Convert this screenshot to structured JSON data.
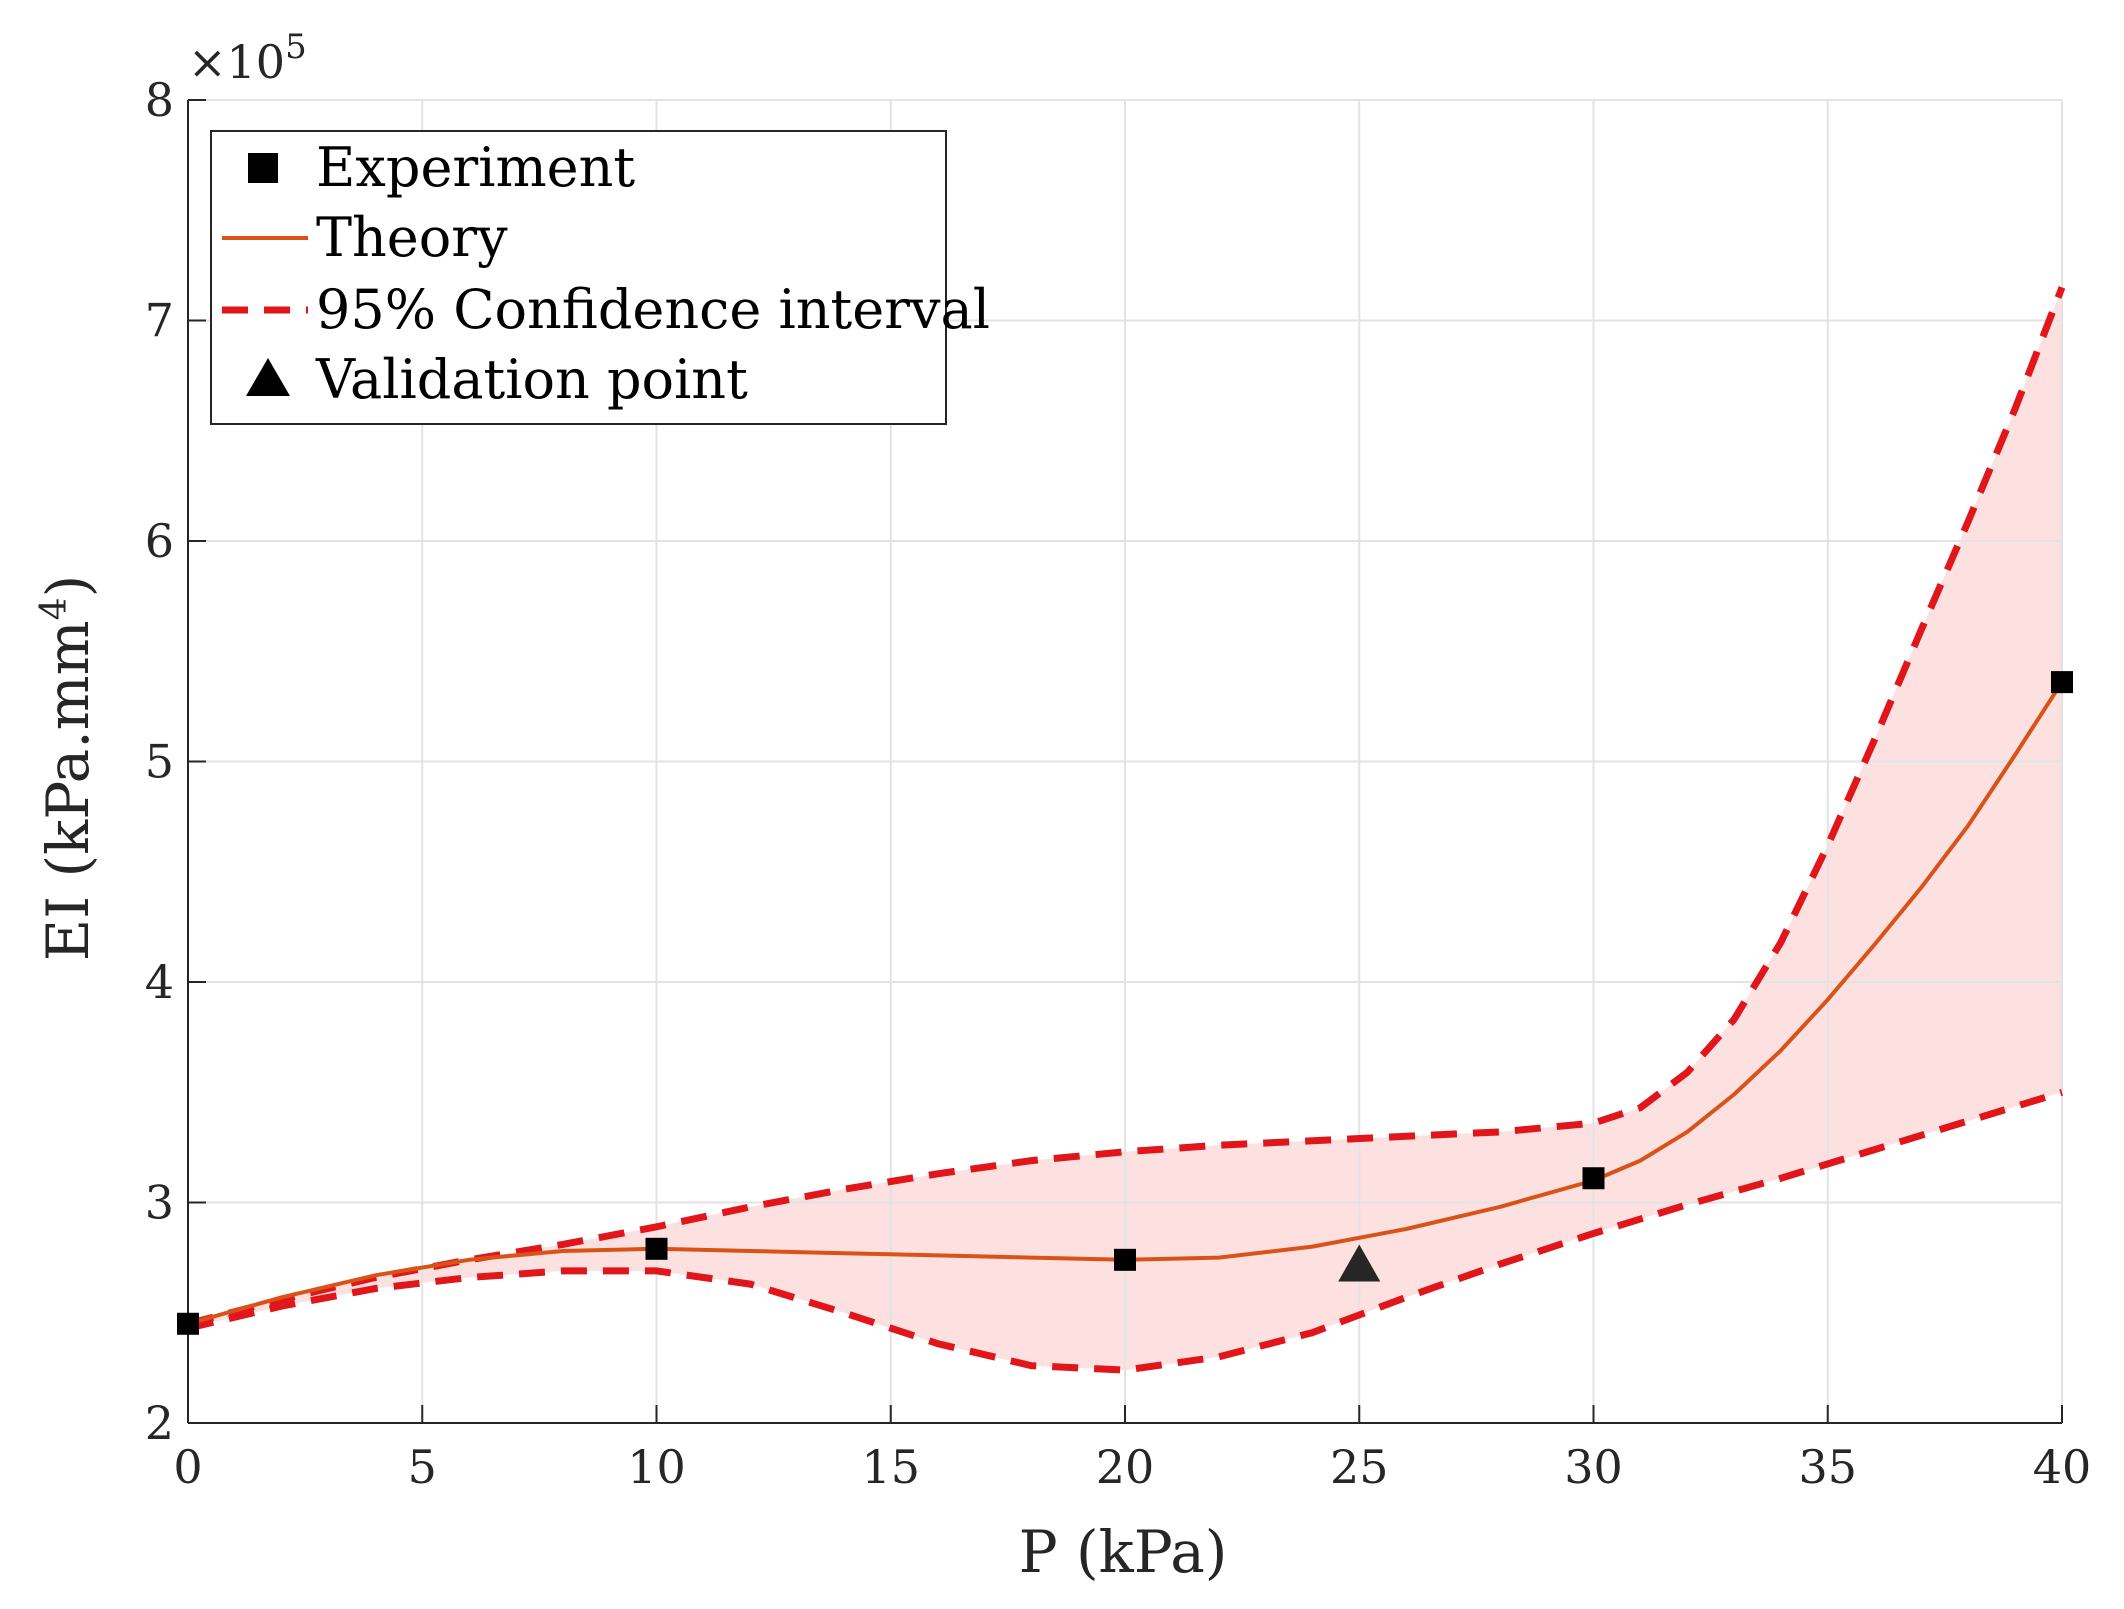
{
  "chart_data": {
    "type": "line",
    "xlabel": "P (kPa)",
    "ylabel_main": "EI (kPa.mm",
    "ylabel_sup": "4",
    "ylabel_close": ")",
    "y_multiplier_prefix": "×10",
    "y_multiplier_exponent": "5",
    "xlim": [
      0,
      40
    ],
    "ylim": [
      2,
      8
    ],
    "x_ticks": [
      0,
      5,
      10,
      15,
      20,
      25,
      30,
      35,
      40
    ],
    "y_ticks": [
      2,
      3,
      4,
      5,
      6,
      7,
      8
    ],
    "grid": true,
    "legend_position": "top-left",
    "legend": [
      {
        "label": "Experiment",
        "marker": "square"
      },
      {
        "label": "Theory",
        "marker": "solid-line"
      },
      {
        "label": "95% Confidence interval",
        "marker": "dashed-line"
      },
      {
        "label": "Validation point",
        "marker": "triangle"
      }
    ],
    "series": [
      {
        "name": "Experiment",
        "kind": "markers",
        "x": [
          0,
          10,
          20,
          30,
          40
        ],
        "y": [
          2.45,
          2.79,
          2.74,
          3.11,
          5.36
        ]
      },
      {
        "name": "Theory",
        "kind": "line",
        "x": [
          0,
          2,
          4,
          6,
          8,
          10,
          12,
          14,
          16,
          18,
          20,
          22,
          24,
          26,
          28,
          30,
          31,
          32,
          33,
          34,
          35,
          36,
          37,
          38,
          39,
          40
        ],
        "y": [
          2.45,
          2.57,
          2.67,
          2.74,
          2.78,
          2.79,
          2.78,
          2.77,
          2.76,
          2.75,
          2.74,
          2.75,
          2.8,
          2.88,
          2.98,
          3.1,
          3.19,
          3.32,
          3.49,
          3.69,
          3.92,
          4.17,
          4.43,
          4.71,
          5.03,
          5.36
        ]
      },
      {
        "name": "95% Confidence interval (upper)",
        "kind": "dashed",
        "x": [
          0,
          2,
          4,
          6,
          8,
          10,
          12,
          14,
          16,
          18,
          20,
          22,
          24,
          26,
          28,
          30,
          31,
          32,
          33,
          34,
          35,
          36,
          37,
          38,
          39,
          40
        ],
        "y": [
          2.45,
          2.56,
          2.66,
          2.74,
          2.81,
          2.89,
          2.98,
          3.06,
          3.13,
          3.19,
          3.23,
          3.26,
          3.28,
          3.3,
          3.32,
          3.36,
          3.43,
          3.59,
          3.83,
          4.18,
          4.62,
          5.1,
          5.6,
          6.09,
          6.6,
          7.15
        ]
      },
      {
        "name": "95% Confidence interval (lower)",
        "kind": "dashed",
        "x": [
          0,
          2,
          4,
          6,
          8,
          10,
          12,
          14,
          16,
          18,
          20,
          22,
          24,
          26,
          28,
          30,
          32,
          34,
          36,
          38,
          40
        ],
        "y": [
          2.43,
          2.53,
          2.61,
          2.66,
          2.69,
          2.69,
          2.63,
          2.5,
          2.36,
          2.26,
          2.24,
          2.3,
          2.41,
          2.57,
          2.72,
          2.86,
          2.99,
          3.11,
          3.24,
          3.37,
          3.5
        ]
      },
      {
        "name": "Validation point",
        "kind": "markers",
        "x": [
          25
        ],
        "y": [
          2.71
        ]
      }
    ]
  },
  "colors": {
    "theory": "#d95319",
    "confidence": "#e0161b",
    "band_fill": "#fde0e0",
    "markers": "#000000",
    "validation": "#262626",
    "grid": "#e3e3e3",
    "axis": "#262626"
  }
}
